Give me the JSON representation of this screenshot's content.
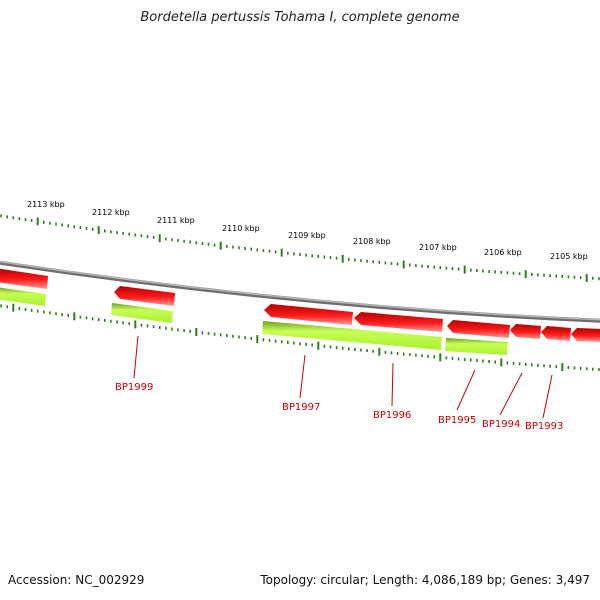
{
  "title": "Bordetella pertussis Tohama I, complete genome",
  "footer": {
    "accession": "Accession: NC_002929",
    "summary": "Topology: circular; Length: 4,086,189 bp; Genes: 3,497"
  },
  "colors": {
    "backbone": "#8a8a8a",
    "tick": "#2e7d1f",
    "gene_reverse": "#e60000",
    "gene_reverse_light": "#ff8080",
    "cds_fill": "#b4ff3c",
    "cds_dark": "#7fb02a",
    "label": "#cc0000"
  },
  "ruler_labels": [
    "2113 kbp",
    "2112 kbp",
    "2111 kbp",
    "2110 kbp",
    "2109 kbp",
    "2108 kbp",
    "2107 kbp",
    "2106 kbp",
    "2105 kbp"
  ],
  "gene_labels": [
    "BP1999",
    "BP1997",
    "BP1996",
    "BP1995",
    "BP1994",
    "BP1993"
  ]
}
